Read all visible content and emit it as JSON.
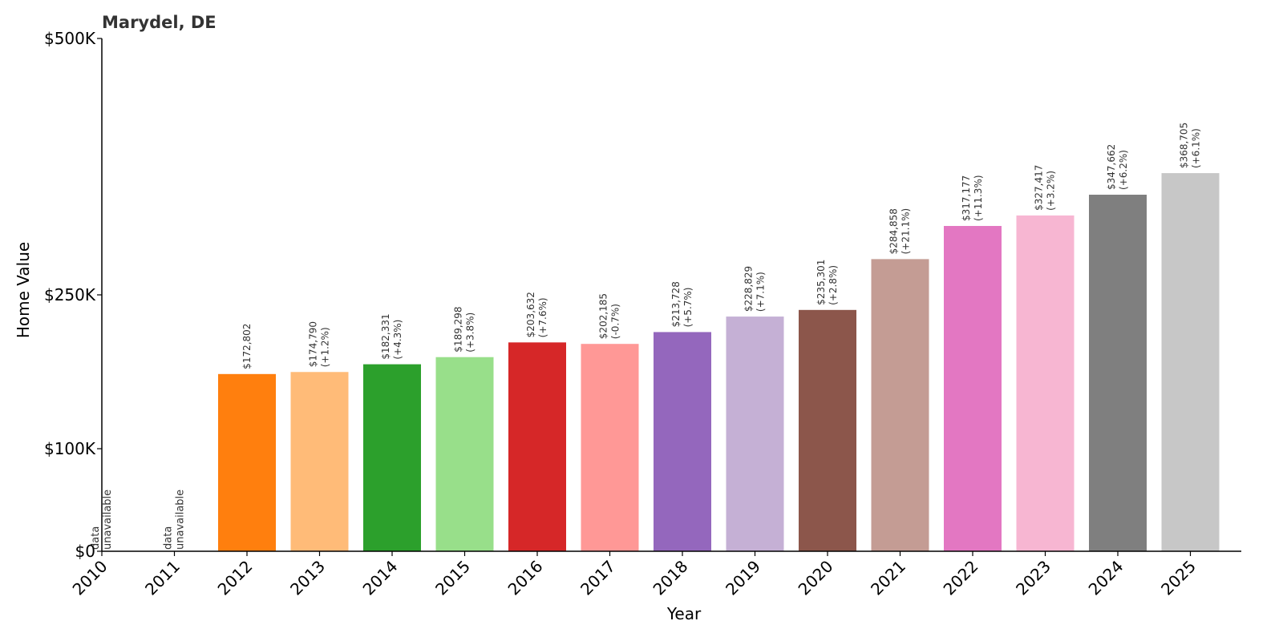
{
  "chart_data": {
    "type": "bar",
    "title": "Marydel, DE",
    "xlabel": "Year",
    "ylabel": "Home Value",
    "categories": [
      "2010",
      "2011",
      "2012",
      "2013",
      "2014",
      "2015",
      "2016",
      "2017",
      "2018",
      "2019",
      "2020",
      "2021",
      "2022",
      "2023",
      "2024",
      "2025"
    ],
    "values": [
      null,
      null,
      172802,
      174790,
      182331,
      189298,
      203632,
      202185,
      213728,
      228829,
      235301,
      284858,
      317177,
      327417,
      347662,
      368705
    ],
    "value_labels": [
      "",
      "",
      "$172,802",
      "$174,790",
      "$182,331",
      "$189,298",
      "$203,632",
      "$202,185",
      "$213,728",
      "$228,829",
      "$235,301",
      "$284,858",
      "$317,177",
      "$327,417",
      "$347,662",
      "$368,705"
    ],
    "change_labels": [
      "",
      "",
      "",
      "(+1.2%)",
      "(+4.3%)",
      "(+3.8%)",
      "(+7.6%)",
      "(-0.7%)",
      "(+5.7%)",
      "(+7.1%)",
      "(+2.8%)",
      "(+21.1%)",
      "(+11.3%)",
      "(+3.2%)",
      "(+6.2%)",
      "(+6.1%)"
    ],
    "missing_label": [
      "data",
      "unavailable"
    ],
    "colors": [
      "#1f77b4",
      "#aec7e8",
      "#ff7f0e",
      "#ffbb78",
      "#2ca02c",
      "#98df8a",
      "#d62728",
      "#ff9896",
      "#9467bd",
      "#c5b0d5",
      "#8c564b",
      "#c49c94",
      "#e377c2",
      "#f7b6d2",
      "#7f7f7f",
      "#c7c7c7"
    ],
    "y_ticks": [
      0,
      100000,
      250000,
      500000
    ],
    "y_tick_labels": [
      "$0",
      "$100K",
      "$250K",
      "$500K"
    ],
    "ylim": [
      0,
      500000
    ],
    "y_scale": "symlog",
    "grid": false,
    "legend": "none"
  }
}
